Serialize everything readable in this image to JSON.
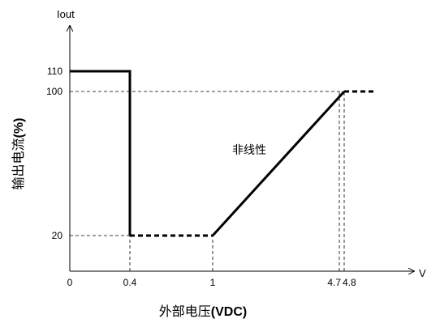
{
  "chart_data": {
    "type": "line",
    "x_axis_name": "V",
    "y_axis_name": "Iout",
    "xlabel_cjk": "外部电压",
    "xlabel_unit": "(VDC)",
    "ylabel_cjk": "输出电流",
    "ylabel_unit": "(%)",
    "annotation": "非线性",
    "x_ticks": [
      {
        "value": 0,
        "label": "0"
      },
      {
        "value": 0.4,
        "label": "0.4"
      },
      {
        "value": 1,
        "label": "1"
      },
      {
        "value": 4.7,
        "label": "4.7"
      },
      {
        "value": 4.8,
        "label": "4.8"
      }
    ],
    "y_ticks": [
      {
        "value": 110,
        "label": "110"
      },
      {
        "value": 100,
        "label": "100"
      },
      {
        "value": 20,
        "label": "20"
      }
    ],
    "x_breaks": [
      [
        0,
        0
      ],
      [
        0.4,
        0.4
      ],
      [
        1,
        1
      ],
      [
        4.7,
        4.7
      ],
      [
        4.8,
        4.8
      ]
    ],
    "segments": [
      {
        "style": "solid",
        "points": [
          [
            0,
            110
          ],
          [
            0.4,
            110
          ],
          [
            0.4,
            20
          ]
        ]
      },
      {
        "style": "dashed",
        "points": [
          [
            0.4,
            20
          ],
          [
            1,
            20
          ]
        ]
      },
      {
        "style": "solid",
        "points": [
          [
            1,
            20
          ],
          [
            4.8,
            100
          ]
        ]
      },
      {
        "style": "dashed",
        "points": [
          [
            4.8,
            100
          ],
          [
            5.0,
            100
          ]
        ]
      }
    ],
    "guides": [
      {
        "points": [
          [
            0,
            100
          ],
          [
            4.8,
            100
          ]
        ]
      },
      {
        "points": [
          [
            0,
            20
          ],
          [
            0.4,
            20
          ]
        ]
      },
      {
        "points": [
          [
            0.4,
            0
          ],
          [
            0.4,
            20
          ]
        ]
      },
      {
        "points": [
          [
            1,
            0
          ],
          [
            1,
            20
          ]
        ]
      },
      {
        "points": [
          [
            4.7,
            0
          ],
          [
            4.7,
            100
          ]
        ]
      },
      {
        "points": [
          [
            4.8,
            0
          ],
          [
            4.8,
            100
          ]
        ]
      }
    ]
  }
}
